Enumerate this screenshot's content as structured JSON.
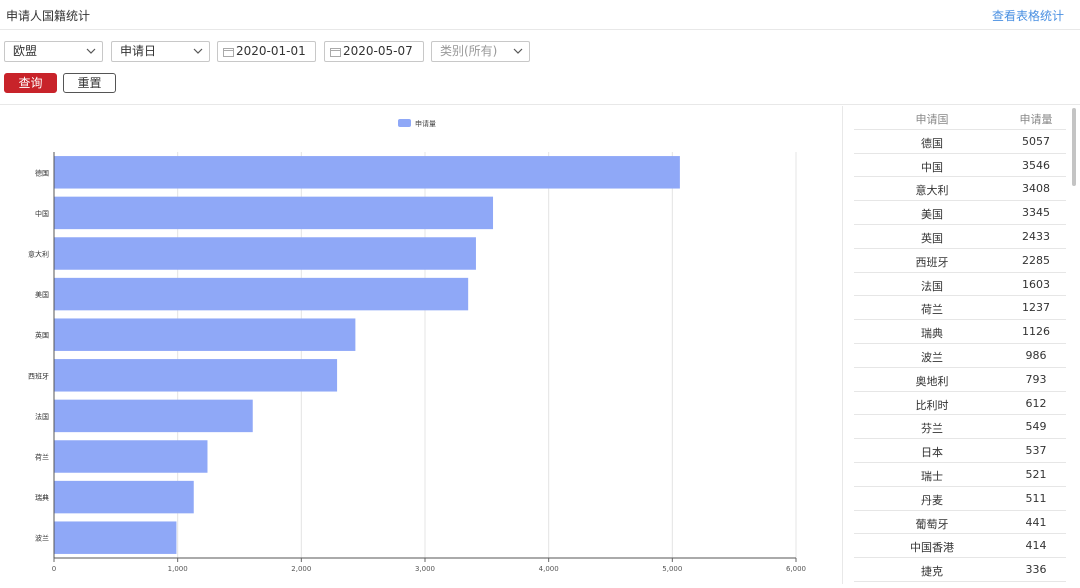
{
  "header": {
    "title": "申请人国籍统计",
    "table_link": "查看表格统计"
  },
  "filters": {
    "region": "欧盟",
    "date_type": "申请日",
    "start_date": "2020-01-01",
    "end_date": "2020-05-07",
    "category_placeholder": "类别(所有)"
  },
  "buttons": {
    "query": "查询",
    "reset": "重置"
  },
  "colors": {
    "bar": "#8fa8f7",
    "primary": "#c8232a",
    "link": "#4a90e2"
  },
  "chart_data": {
    "type": "bar",
    "orientation": "horizontal",
    "legend": "申请量",
    "categories": [
      "德国",
      "中国",
      "意大利",
      "美国",
      "英国",
      "西班牙",
      "法国",
      "荷兰",
      "瑞典",
      "波兰"
    ],
    "values": [
      5057,
      3546,
      3408,
      3345,
      2433,
      2285,
      1603,
      1237,
      1126,
      986
    ],
    "xlim": [
      0,
      6000
    ],
    "xticks": [
      "0",
      "1,000",
      "2,000",
      "3,000",
      "4,000",
      "5,000",
      "6,000"
    ],
    "grid": true
  },
  "table": {
    "headers": [
      "申请国",
      "申请量"
    ],
    "rows": [
      [
        "德国",
        "5057"
      ],
      [
        "中国",
        "3546"
      ],
      [
        "意大利",
        "3408"
      ],
      [
        "美国",
        "3345"
      ],
      [
        "英国",
        "2433"
      ],
      [
        "西班牙",
        "2285"
      ],
      [
        "法国",
        "1603"
      ],
      [
        "荷兰",
        "1237"
      ],
      [
        "瑞典",
        "1126"
      ],
      [
        "波兰",
        "986"
      ],
      [
        "奥地利",
        "793"
      ],
      [
        "比利时",
        "612"
      ],
      [
        "芬兰",
        "549"
      ],
      [
        "日本",
        "537"
      ],
      [
        "瑞士",
        "521"
      ],
      [
        "丹麦",
        "511"
      ],
      [
        "葡萄牙",
        "441"
      ],
      [
        "中国香港",
        "414"
      ],
      [
        "捷克",
        "336"
      ]
    ]
  }
}
